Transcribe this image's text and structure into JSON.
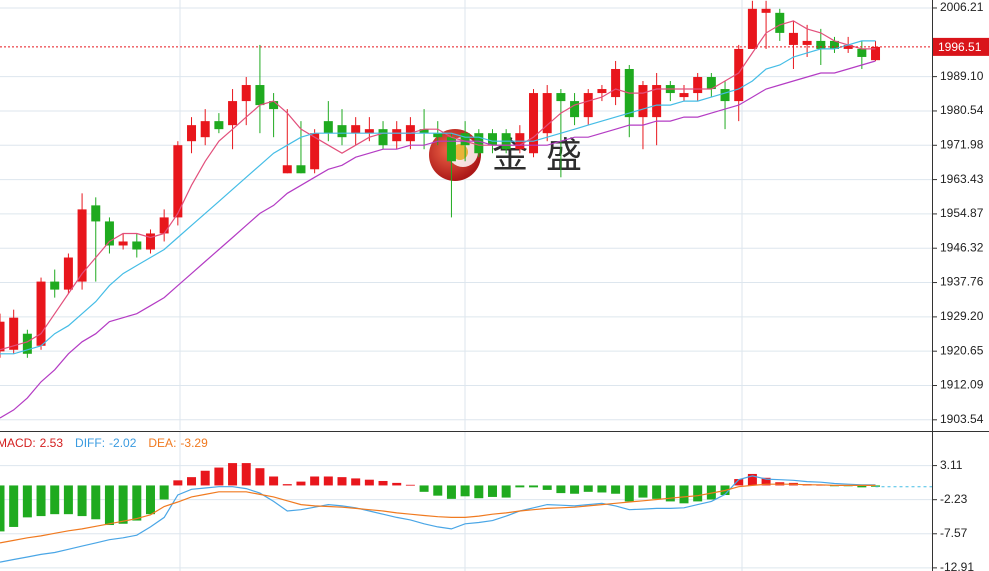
{
  "chart_data": [
    {
      "type": "candlestick",
      "up_color": "#e8161c",
      "down_color": "#1faa1f",
      "ohlc": [
        [
          1920.6,
          1930,
          1919,
          1928
        ],
        [
          1921,
          1931,
          1920,
          1929
        ],
        [
          1925,
          1926,
          1919,
          1920
        ],
        [
          1922,
          1939,
          1921,
          1938
        ],
        [
          1938,
          1941,
          1934,
          1936
        ],
        [
          1936,
          1945,
          1935,
          1944
        ],
        [
          1938,
          1960,
          1936,
          1956
        ],
        [
          1957,
          1959,
          1938,
          1953
        ],
        [
          1953,
          1954,
          1945,
          1947
        ],
        [
          1947,
          1950,
          1946,
          1948
        ],
        [
          1948,
          1950,
          1944,
          1946
        ],
        [
          1946,
          1951,
          1945,
          1950
        ],
        [
          1950,
          1956,
          1948,
          1954
        ],
        [
          1954,
          1973,
          1952,
          1972
        ],
        [
          1973,
          1979,
          1970,
          1977
        ],
        [
          1974,
          1981,
          1972,
          1978
        ],
        [
          1978,
          1980,
          1975,
          1976
        ],
        [
          1977,
          1986,
          1971,
          1983
        ],
        [
          1983,
          1989,
          1977,
          1987
        ],
        [
          1987,
          1997,
          1975,
          1982
        ],
        [
          1983,
          1985,
          1974,
          1981
        ],
        [
          1965,
          1981,
          1965,
          1967
        ],
        [
          1967,
          1978,
          1965,
          1965
        ],
        [
          1966,
          1976,
          1965,
          1975
        ],
        [
          1978,
          1983,
          1973,
          1975
        ],
        [
          1977,
          1981,
          1972,
          1974
        ],
        [
          1975,
          1979,
          1972,
          1977
        ],
        [
          1975,
          1979,
          1973,
          1976
        ],
        [
          1976,
          1978,
          1971,
          1972
        ],
        [
          1973,
          1978,
          1971,
          1976
        ],
        [
          1973,
          1979,
          1971,
          1977
        ],
        [
          1976,
          1981,
          1971,
          1975
        ],
        [
          1975,
          1978,
          1972,
          1974
        ],
        [
          1974,
          1975,
          1954,
          1968
        ],
        [
          1975,
          1978,
          1968,
          1972
        ],
        [
          1975,
          1976,
          1969,
          1970
        ],
        [
          1975,
          1976,
          1970,
          1972
        ],
        [
          1975,
          1976,
          1970,
          1971
        ],
        [
          1971,
          1977,
          1970,
          1975
        ],
        [
          1970,
          1986,
          1969,
          1985
        ],
        [
          1975,
          1987,
          1973,
          1985
        ],
        [
          1985,
          1986,
          1964,
          1983
        ],
        [
          1983,
          1985,
          1977,
          1979
        ],
        [
          1979,
          1986,
          1977,
          1985
        ],
        [
          1985,
          1987,
          1983,
          1986
        ],
        [
          1984,
          1993,
          1982,
          1991
        ],
        [
          1991,
          1992,
          1974,
          1979
        ],
        [
          1979,
          1988,
          1971,
          1987
        ],
        [
          1979,
          1990,
          1972,
          1987
        ],
        [
          1987,
          1988,
          1983,
          1985
        ],
        [
          1984,
          1987,
          1983,
          1985
        ],
        [
          1985,
          1990,
          1983,
          1989
        ],
        [
          1989,
          1990,
          1984,
          1986
        ],
        [
          1986,
          1988,
          1976,
          1983
        ],
        [
          1983,
          1997,
          1978,
          1996
        ],
        [
          1996,
          2008,
          1996,
          2006
        ],
        [
          2005,
          2008,
          1996,
          2006
        ],
        [
          2005,
          2006,
          1998,
          2000
        ],
        [
          1997,
          2003,
          1991,
          2000
        ],
        [
          1997,
          2002,
          1994,
          1998
        ],
        [
          1998,
          2001,
          1992,
          1996
        ],
        [
          1998,
          1999,
          1995,
          1996
        ],
        [
          1996,
          1999,
          1995,
          1997
        ],
        [
          1996,
          1998,
          1991,
          1994
        ],
        [
          1993.2,
          1998,
          1993,
          1996.51
        ]
      ],
      "lines": [
        {
          "color": "#e2507c",
          "values": [
            1921,
            1922,
            1923,
            1925,
            1930,
            1935,
            1940,
            1944,
            1948,
            1950,
            1950,
            1949,
            1950,
            1955,
            1962,
            1968,
            1973,
            1976,
            1979,
            1982,
            1983,
            1980,
            1976,
            1974,
            1972,
            1970,
            1972,
            1974,
            1975,
            1975,
            1975,
            1976,
            1976,
            1974,
            1973,
            1972,
            1972,
            1972,
            1972,
            1974,
            1977,
            1980,
            1982,
            1983,
            1984,
            1986,
            1985,
            1985,
            1986,
            1986,
            1986,
            1986,
            1986,
            1988,
            1990,
            1995,
            2000,
            2002,
            2003,
            2001,
            2000,
            1998,
            1997,
            1996,
            1996
          ]
        },
        {
          "color": "#45bde6",
          "values": [
            1920,
            1920,
            1921,
            1922,
            1925,
            1927,
            1930,
            1933,
            1937,
            1940,
            1942,
            1944,
            1946,
            1949,
            1952,
            1955,
            1958,
            1961,
            1964,
            1967,
            1970,
            1972,
            1974,
            1975,
            1975,
            1975,
            1975,
            1975,
            1975,
            1975,
            1975,
            1975,
            1975,
            1975,
            1974,
            1974,
            1973,
            1973,
            1973,
            1973,
            1974,
            1975,
            1976,
            1977,
            1978,
            1979,
            1980,
            1981,
            1982,
            1982,
            1983,
            1983,
            1984,
            1985,
            1986,
            1988,
            1991,
            1992,
            1994,
            1995,
            1996,
            1996,
            1997,
            1998,
            1998
          ]
        },
        {
          "color": "#b43cc4",
          "values": [
            1904,
            1906,
            1909,
            1913,
            1916,
            1920,
            1923,
            1925,
            1928,
            1929,
            1930,
            1932,
            1934,
            1937,
            1940,
            1943,
            1946,
            1949,
            1952,
            1955,
            1957,
            1960,
            1962,
            1964,
            1966,
            1967,
            1969,
            1970,
            1971,
            1971,
            1972,
            1972,
            1973,
            1973,
            1973,
            1973,
            1972,
            1972,
            1972,
            1972,
            1972,
            1973,
            1974,
            1974,
            1975,
            1976,
            1977,
            1977,
            1978,
            1978,
            1979,
            1979,
            1980,
            1981,
            1982,
            1984,
            1986,
            1987,
            1988,
            1989,
            1990,
            1990,
            1991,
            1992,
            1993
          ]
        }
      ],
      "current_price": 1996.51,
      "ylim": [
        1901.0,
        2008.2
      ],
      "yticks": [
        2006.21,
        {
          "value": 1989.1,
          "label": "1989.10"
        },
        1980.54,
        1971.98,
        1963.43,
        1954.87,
        1946.32,
        1937.76,
        {
          "value": 1929.2,
          "label": "1929.20"
        },
        1920.65,
        1912.09,
        1903.54
      ],
      "grid": true,
      "watermark": "金 盛"
    },
    {
      "type": "bar",
      "legend": [
        {
          "label": "MACD:",
          "value": 2.53,
          "color": "#d42020"
        },
        {
          "label": "DIFF:",
          "value": -2.02,
          "color": "#3a9be0"
        },
        {
          "label": "DEA:",
          "value": -3.29,
          "color": "#f07a20"
        }
      ],
      "up_color": "#e8161c",
      "down_color": "#1faa1f",
      "values": [
        -7.2,
        -6.5,
        -5,
        -4.8,
        -4.5,
        -4.5,
        -4.8,
        -5.3,
        -6.2,
        -6,
        -5.5,
        -4.5,
        -2.2,
        0.8,
        1.3,
        2.3,
        2.8,
        3.5,
        3.5,
        2.7,
        1.4,
        0.2,
        0.6,
        1.4,
        1.4,
        1.3,
        1.1,
        0.9,
        0.7,
        0.4,
        0.1,
        -1,
        -1.6,
        -2.1,
        -1.7,
        -2,
        -1.8,
        -1.9,
        -0.3,
        -0.3,
        -0.7,
        -1.2,
        -1.3,
        -1,
        -1.1,
        -1.3,
        -2.5,
        -1.9,
        -2.1,
        -2.5,
        -2.8,
        -2.5,
        -2.2,
        -1.5,
        1,
        1.8,
        1.2,
        0.5,
        0.4,
        0.2,
        0.1,
        -0.1,
        -0.1,
        -0.3,
        -0.2
      ],
      "lines": [
        {
          "color": "#4aa6e6",
          "values": [
            -12,
            -11.6,
            -11.2,
            -10.8,
            -10.5,
            -10,
            -9.5,
            -9,
            -8.5,
            -8.2,
            -7.8,
            -6.5,
            -5,
            -1.5,
            -0.6,
            -0.4,
            -0.2,
            -0.2,
            -0.5,
            -1.2,
            -2.5,
            -4,
            -3.8,
            -3.4,
            -3,
            -3.2,
            -3.5,
            -4,
            -4.5,
            -5,
            -5.4,
            -6,
            -6.5,
            -6.8,
            -6,
            -5.8,
            -5.5,
            -4.8,
            -4,
            -3.5,
            -3,
            -3.1,
            -3.2,
            -3,
            -2.8,
            -3.2,
            -3.8,
            -3.7,
            -3.6,
            -3.6,
            -3.5,
            -3,
            -2.5,
            -1.4,
            0.9,
            1.5,
            1,
            0.9,
            0.8,
            0.6,
            0.5,
            0.3,
            0.2,
            0.1,
            0.1
          ]
        },
        {
          "color": "#f07a20",
          "values": [
            -9,
            -8.6,
            -8.2,
            -7.9,
            -7.5,
            -7.1,
            -6.8,
            -6.4,
            -6,
            -5.6,
            -5.2,
            -4.6,
            -3.3,
            -2.6,
            -1.8,
            -1.4,
            -1,
            -1,
            -1,
            -1.4,
            -1.8,
            -2.4,
            -3,
            -3.2,
            -3.3,
            -3.4,
            -3.6,
            -3.8,
            -4,
            -4.3,
            -4.5,
            -4.7,
            -4.9,
            -5,
            -5,
            -4.8,
            -4.5,
            -4.3,
            -4,
            -3.8,
            -3.6,
            -3.5,
            -3.4,
            -3.2,
            -3,
            -2.8,
            -2.6,
            -2.4,
            -2.2,
            -2,
            -1.8,
            -1.6,
            -1.2,
            -0.8,
            -0.2,
            0,
            0.2,
            0.2,
            0.2,
            0.1,
            0.1,
            0,
            0,
            0,
            0
          ]
        }
      ],
      "ylim": [
        -13.4,
        8.37
      ],
      "yticks": [
        3.11,
        -2.23,
        -7.57,
        -12.91
      ],
      "grid": true
    }
  ]
}
